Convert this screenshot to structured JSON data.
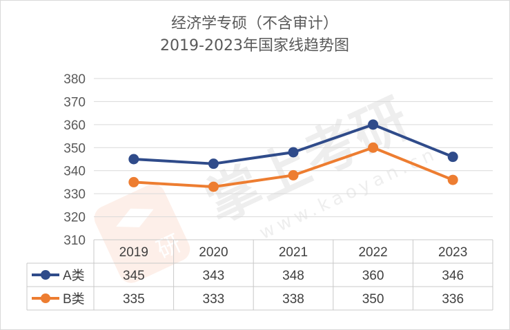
{
  "chart_data": {
    "type": "line",
    "title": "经济学专硕（不含审计）",
    "subtitle": "2019-2023年国家线趋势图",
    "categories": [
      "2019",
      "2020",
      "2021",
      "2022",
      "2023"
    ],
    "series": [
      {
        "name": "A类",
        "values": [
          345,
          343,
          348,
          360,
          346
        ],
        "color": "#2f4b8a"
      },
      {
        "name": "B类",
        "values": [
          335,
          333,
          338,
          350,
          336
        ],
        "color": "#ed7d31"
      }
    ],
    "ylim": [
      310,
      380
    ],
    "yticks": [
      310,
      320,
      330,
      340,
      350,
      360,
      370,
      380
    ],
    "grid": true,
    "legend": "data-table",
    "watermark": {
      "brand": "掌上考研",
      "url": "www.kaoyan.cn",
      "badge": "研"
    }
  }
}
